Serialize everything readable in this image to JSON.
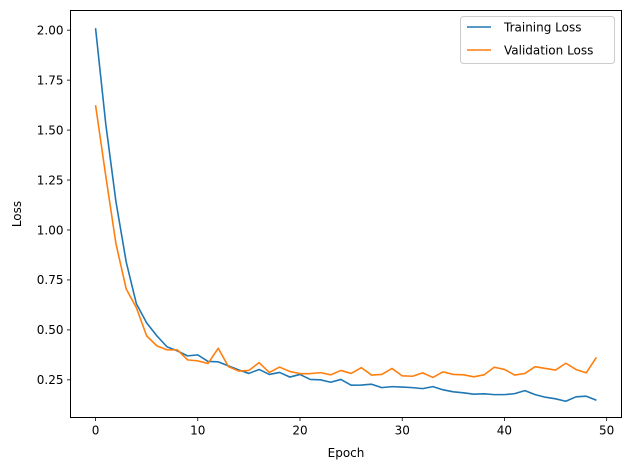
{
  "chart_data": {
    "type": "line",
    "title": "",
    "xlabel": "Epoch",
    "ylabel": "Loss",
    "xlim": [
      -2.45,
      51.45
    ],
    "ylim": [
      0.0615,
      2.0985
    ],
    "xticks": [
      0,
      10,
      20,
      30,
      40,
      50
    ],
    "xtick_labels": [
      "0",
      "10",
      "20",
      "30",
      "40",
      "50"
    ],
    "yticks": [
      0.25,
      0.5,
      0.75,
      1.0,
      1.25,
      1.5,
      1.75,
      2.0
    ],
    "ytick_labels": [
      "0.25",
      "0.50",
      "0.75",
      "1.00",
      "1.25",
      "1.50",
      "1.75",
      "2.00"
    ],
    "grid": false,
    "legend_position": "upper right",
    "x": [
      0,
      1,
      2,
      3,
      4,
      5,
      6,
      7,
      8,
      9,
      10,
      11,
      12,
      13,
      14,
      15,
      16,
      17,
      18,
      19,
      20,
      21,
      22,
      23,
      24,
      25,
      26,
      27,
      28,
      29,
      30,
      31,
      32,
      33,
      34,
      35,
      36,
      37,
      38,
      39,
      40,
      41,
      42,
      43,
      44,
      45,
      46,
      47,
      48,
      49
    ],
    "series": [
      {
        "name": "Training Loss",
        "color": "#1f77b4",
        "values": [
          2.01,
          1.53,
          1.14,
          0.84,
          0.63,
          0.535,
          0.47,
          0.415,
          0.395,
          0.37,
          0.375,
          0.342,
          0.34,
          0.32,
          0.3,
          0.282,
          0.302,
          0.277,
          0.287,
          0.264,
          0.277,
          0.252,
          0.25,
          0.238,
          0.252,
          0.223,
          0.224,
          0.228,
          0.211,
          0.216,
          0.214,
          0.211,
          0.206,
          0.216,
          0.2,
          0.19,
          0.185,
          0.178,
          0.18,
          0.176,
          0.176,
          0.181,
          0.196,
          0.176,
          0.163,
          0.155,
          0.143,
          0.165,
          0.168,
          0.148
        ]
      },
      {
        "name": "Validation Loss",
        "color": "#ff7f0e",
        "values": [
          1.625,
          1.27,
          0.93,
          0.705,
          0.61,
          0.47,
          0.42,
          0.4,
          0.4,
          0.35,
          0.345,
          0.332,
          0.408,
          0.316,
          0.294,
          0.297,
          0.336,
          0.287,
          0.314,
          0.292,
          0.281,
          0.281,
          0.286,
          0.275,
          0.297,
          0.282,
          0.311,
          0.274,
          0.277,
          0.307,
          0.27,
          0.268,
          0.285,
          0.262,
          0.29,
          0.277,
          0.275,
          0.265,
          0.275,
          0.313,
          0.302,
          0.274,
          0.282,
          0.316,
          0.307,
          0.299,
          0.333,
          0.302,
          0.285,
          0.363
        ]
      }
    ]
  }
}
